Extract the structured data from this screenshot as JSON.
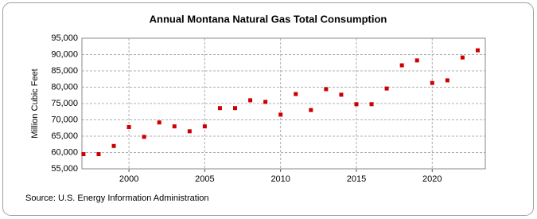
{
  "chart_data": {
    "type": "scatter",
    "title": "Annual Montana Natural Gas Total Consumption",
    "y_label": "Million Cubic Feet",
    "source": "Source: U.S. Energy Information Administration",
    "color": "#cc0000",
    "grid": true,
    "x": [
      1997,
      1998,
      1999,
      2000,
      2001,
      2002,
      2003,
      2004,
      2005,
      2006,
      2007,
      2008,
      2009,
      2010,
      2011,
      2012,
      2013,
      2014,
      2015,
      2016,
      2017,
      2018,
      2019,
      2020,
      2021,
      2022,
      2023
    ],
    "values": [
      59500,
      59500,
      62000,
      67800,
      64800,
      69200,
      68000,
      66500,
      68000,
      73600,
      73600,
      76000,
      75500,
      71600,
      77900,
      73000,
      79400,
      77700,
      74800,
      74800,
      79600,
      86700,
      88200,
      81300,
      82100,
      89100,
      91300
    ],
    "xlim": [
      1996.9,
      2023.5
    ],
    "xticks": [
      2000,
      2005,
      2010,
      2015,
      2020
    ],
    "ylim": [
      55000,
      95000
    ],
    "yticks": [
      {
        "value": 55000,
        "label": "55,000"
      },
      {
        "value": 60000,
        "label": "60,000"
      },
      {
        "value": 65000,
        "label": "65,000"
      },
      {
        "value": 70000,
        "label": "70,000"
      },
      {
        "value": 75000,
        "label": "75,000"
      },
      {
        "value": 80000,
        "label": "80,000"
      },
      {
        "value": 85000,
        "label": "85,000"
      },
      {
        "value": 90000,
        "label": "90,000"
      },
      {
        "value": 95000,
        "label": "95,000"
      }
    ]
  }
}
